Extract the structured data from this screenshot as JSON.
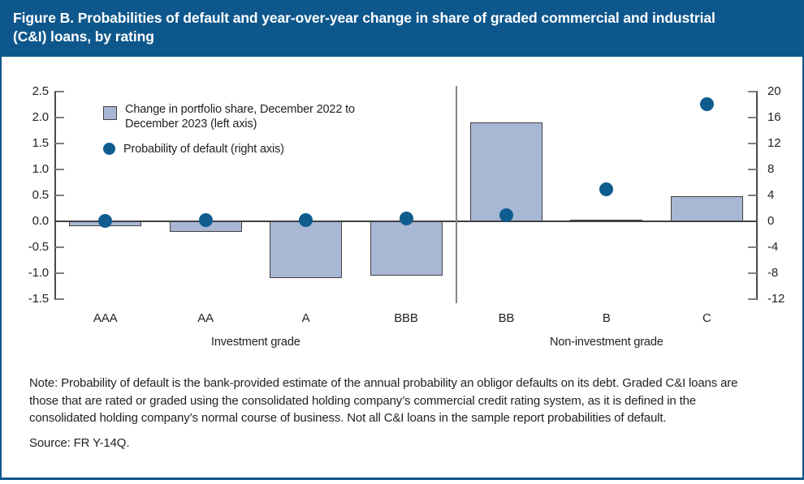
{
  "header": {
    "title": "Figure B. Probabilities of default and year-over-year change in share of graded commercial and industrial (C&I) loans, by rating"
  },
  "legend": {
    "bar_label": "Change in portfolio share, December 2022 to\nDecember 2023 (left axis)",
    "dot_label": "Probability of default (right axis)"
  },
  "colors": {
    "accent_blue": "#0e578c",
    "bar_fill": "#a8b7d3",
    "bar_border": "#414042",
    "dot_blue": "#0f5c8f",
    "text": "#221f1f"
  },
  "chart_data": {
    "type": "bar",
    "subtype": "bar-and-scatter-combo, dual axis",
    "categories": [
      "AAA",
      "AA",
      "A",
      "BBB",
      "BB",
      "B",
      "C"
    ],
    "series": [
      {
        "name": "Change in portfolio share, December 2022 to December 2023 (left axis)",
        "mark": "bar",
        "axis": "left",
        "values": [
          -0.1,
          -0.2,
          -1.1,
          -1.05,
          1.9,
          0.03,
          0.48
        ]
      },
      {
        "name": "Probability of default (right axis)",
        "mark": "scatter",
        "axis": "right",
        "values": [
          0.1,
          0.2,
          0.25,
          0.4,
          0.9,
          4.9,
          18.1
        ]
      }
    ],
    "left_axis": {
      "min": -1.5,
      "max": 2.5,
      "ticks": [
        "2.5",
        "2.0",
        "1.5",
        "1.0",
        "0.5",
        "0.0",
        "-0.5",
        "-1.0",
        "-1.5"
      ]
    },
    "right_axis": {
      "min": -12,
      "max": 20,
      "ticks": [
        "20",
        "16",
        "12",
        "8",
        "4",
        "0",
        "-4",
        "-8",
        "-12"
      ]
    },
    "group_labels": [
      {
        "label": "Investment grade",
        "from": 0,
        "to": 3
      },
      {
        "label": "Non-investment grade",
        "from": 4,
        "to": 6
      }
    ],
    "separator_after_index": 3,
    "grid": false,
    "legend_position": "top-left"
  },
  "footer": {
    "note": "Note: Probability of default is the bank-provided estimate of the annual probability an obligor defaults on its debt. Graded C&I loans are those that are rated or graded using the consolidated holding company’s commercial credit rating system, as it is defined in the consolidated holding company’s normal course of business. Not all C&I loans in the sample report probabilities of default.",
    "source": "Source: FR Y-14Q."
  }
}
